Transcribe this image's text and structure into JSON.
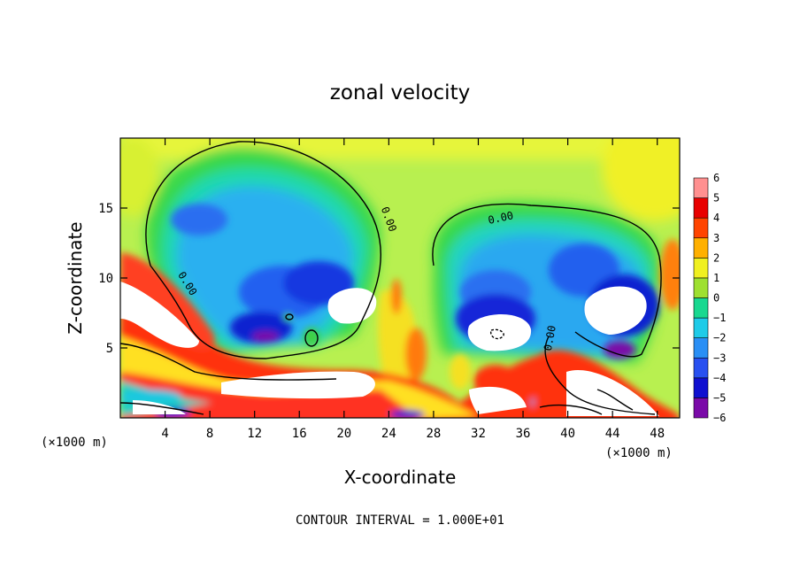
{
  "chart_data": {
    "type": "contour-filled",
    "title": "zonal velocity",
    "xlabel": "X-coordinate",
    "ylabel": "Z-coordinate",
    "x_unit": "(×1000 m)",
    "x_unit_right": "(×1000 m)",
    "xlim": [
      0,
      50
    ],
    "ylim": [
      0,
      20
    ],
    "x_ticks": [
      4,
      8,
      12,
      16,
      20,
      24,
      28,
      32,
      36,
      40,
      44,
      48
    ],
    "y_ticks": [
      5,
      10,
      15
    ],
    "x_tick_labels": [
      "4",
      "8",
      "12",
      "16",
      "20",
      "24",
      "28",
      "32",
      "36",
      "40",
      "44",
      "48"
    ],
    "y_tick_labels": [
      "5",
      "10",
      "15"
    ],
    "colorbar": {
      "levels": [
        -6,
        -5,
        -4,
        -3,
        -2,
        -1,
        0,
        1,
        2,
        3,
        4,
        5,
        6
      ],
      "labels": [
        "−6",
        "−5",
        "−4",
        "−3",
        "−2",
        "−1",
        "0",
        "1",
        "2",
        "3",
        "4",
        "5",
        "6"
      ],
      "colors": [
        "#7a0aa8",
        "#1010d0",
        "#2850f0",
        "#2a8ff5",
        "#1ecbe8",
        "#18d890",
        "#30d040",
        "#9ee030",
        "#f0f020",
        "#ffb000",
        "#ff4400",
        "#e80000",
        "#ff9090"
      ]
    },
    "contour_labels": [
      {
        "text": "0.00",
        "x": 24,
        "y": 14.2,
        "rot": 70
      },
      {
        "text": "0.00",
        "x": 6,
        "y": 9.6,
        "rot": 58
      },
      {
        "text": "0.00",
        "x": 34,
        "y": 14.3,
        "rot": -12
      },
      {
        "text": "0.00",
        "x": 38.4,
        "y": 5.7,
        "rot": -80
      }
    ],
    "features": {
      "strong_positive_regions": [
        {
          "x": 3,
          "y": 7.5
        },
        {
          "x": 14,
          "y": 2.2
        },
        {
          "x": 21,
          "y": 8.2
        },
        {
          "x": 45,
          "y": 7.6
        },
        {
          "x": 34,
          "y": 6.1
        },
        {
          "x": 43,
          "y": 2
        }
      ],
      "strong_negative_regions": [
        {
          "x": 13,
          "y": 6
        },
        {
          "x": 19,
          "y": 9.5
        },
        {
          "x": 9,
          "y": 14.5
        },
        {
          "x": 38,
          "y": 6.5
        },
        {
          "x": 41,
          "y": 10
        }
      ]
    },
    "annotation": "CONTOUR INTERVAL = 1.000E+01"
  }
}
